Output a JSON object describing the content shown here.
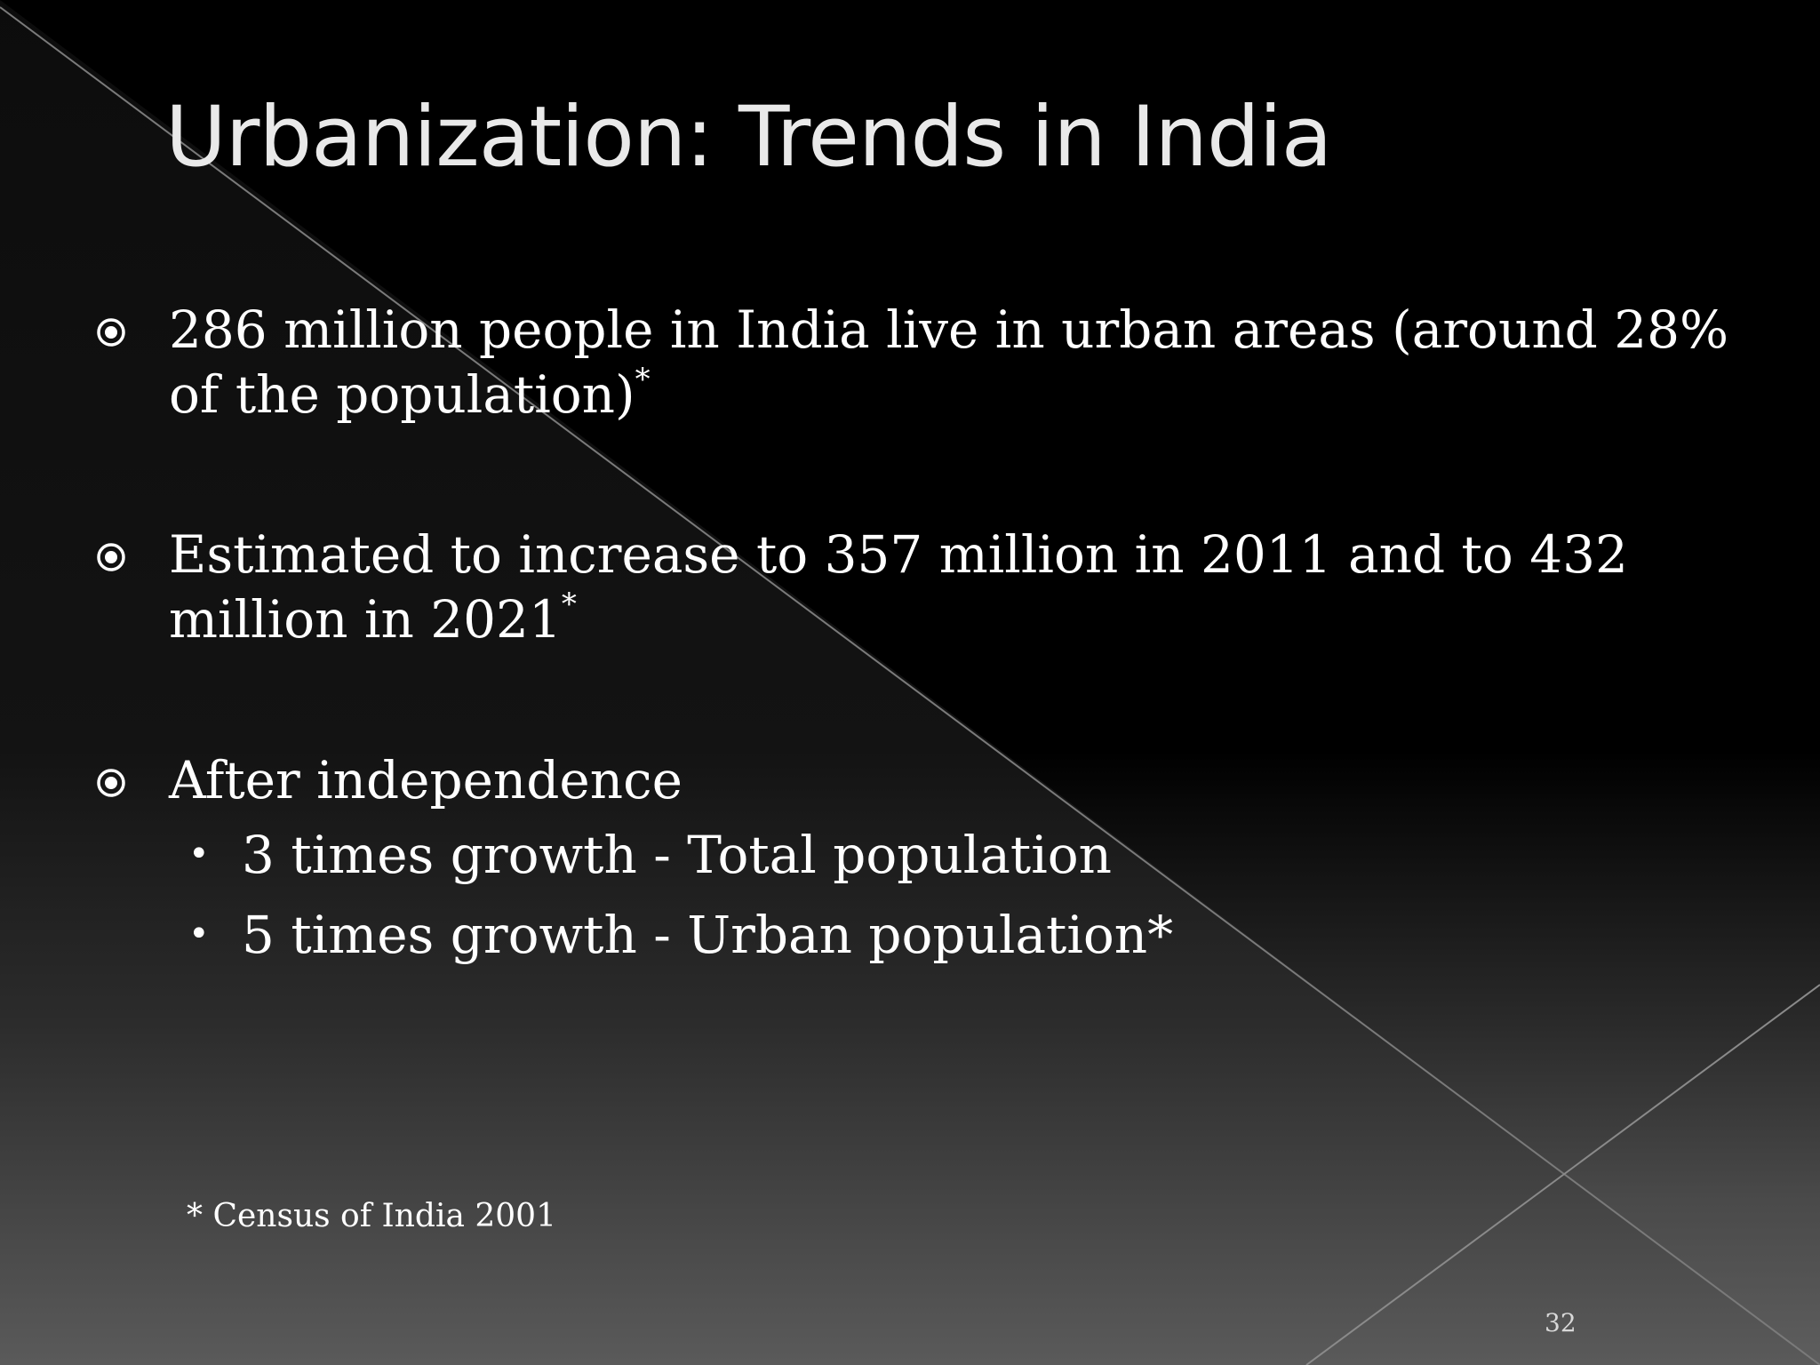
{
  "slide": {
    "title": "Urbanization: Trends in India",
    "bullets": [
      {
        "text": "286 million people in India live in urban areas (around 28% of the population)",
        "marker": "*"
      },
      {
        "text": "Estimated to increase to 357 million in 2011 and to 432 million  in 2021",
        "marker": "*"
      },
      {
        "text": "After independence",
        "sub_items": [
          "3 times growth - Total population",
          "5 times growth - Urban population*"
        ]
      }
    ],
    "footnote": "* Census of India 2001",
    "page_number": "32"
  },
  "icons": {
    "main_bullet": "circled-dot-icon",
    "sub_bullet": "bullet-dot-icon"
  },
  "colors": {
    "background": "#000000",
    "text": "#ffffff",
    "title": "#e9e9e9"
  }
}
